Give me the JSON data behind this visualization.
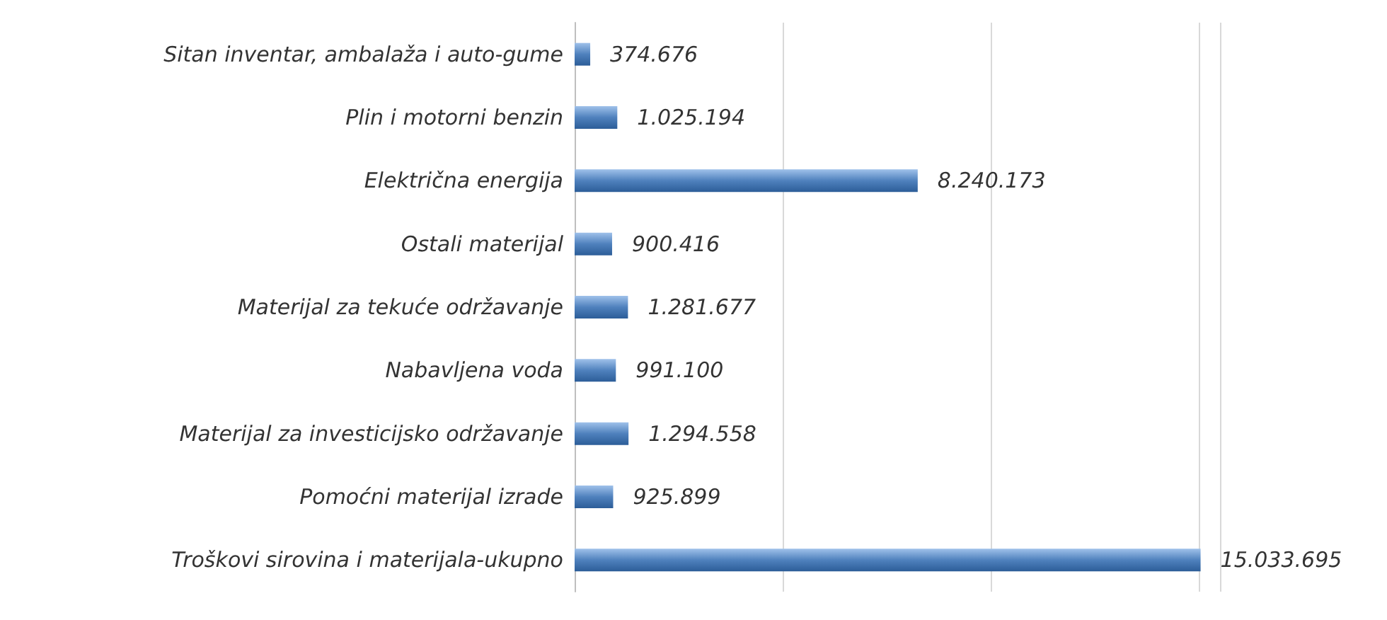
{
  "chart_data": {
    "type": "bar",
    "orientation": "horizontal",
    "categories": [
      "Sitan inventar, ambalaža i auto-gume",
      "Plin i motorni benzin",
      "Električna energija",
      "Ostali materijal",
      "Materijal za tekuće održavanje",
      "Nabavljena voda",
      "Materijal za investicijsko održavanje",
      "Pomoćni materijal izrade",
      "Troškovi sirovina i materijala-ukupno"
    ],
    "values": [
      374676,
      1025194,
      8240173,
      900416,
      1281677,
      991100,
      1294558,
      925899,
      15033695
    ],
    "value_labels": [
      "374.676",
      "1.025.194",
      "8.240.173",
      "900.416",
      "1.281.677",
      "991.100",
      "1.294.558",
      "925.899",
      "15.033.695"
    ],
    "color": "#4f81bd",
    "xlim": [
      0,
      15500000
    ],
    "xticks": [
      {
        "value": 0,
        "label": null
      },
      {
        "value": 5000000,
        "label": null
      },
      {
        "value": 10000000,
        "label": null
      },
      {
        "value": 15000000,
        "label": null
      }
    ],
    "grid": "x"
  }
}
